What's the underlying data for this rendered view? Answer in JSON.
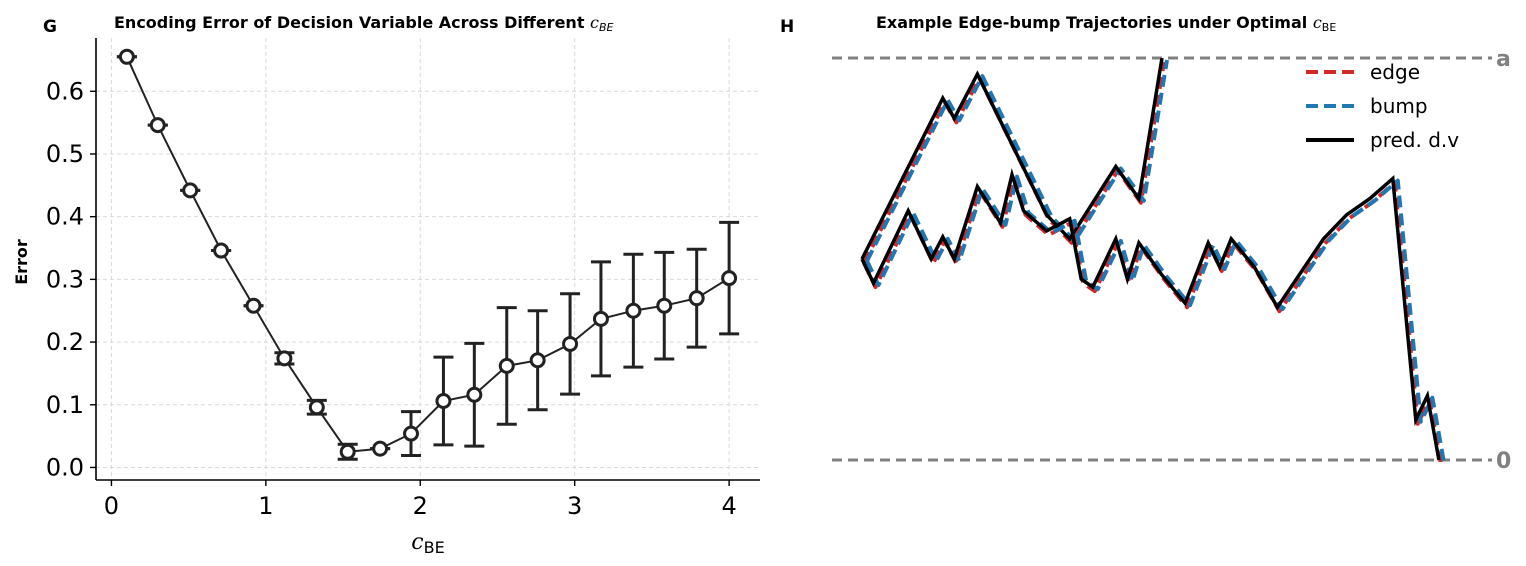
{
  "chart_data": [
    {
      "panel": "G",
      "type": "line",
      "title_prefix": "Encoding Error of Decision Variable Across Different ",
      "title_symbol": "c",
      "title_subscript": "BE",
      "xlabel_symbol": "c",
      "xlabel_subscript": "BE",
      "ylabel": "Error",
      "xlim": [
        -0.1,
        4.2
      ],
      "ylim": [
        -0.02,
        0.685
      ],
      "xticks": [
        0,
        1,
        2,
        3,
        4
      ],
      "yticks": [
        0.0,
        0.1,
        0.2,
        0.3,
        0.4,
        0.5,
        0.6
      ],
      "ytick_labels": [
        "0.0",
        "0.1",
        "0.2",
        "0.3",
        "0.4",
        "0.5",
        "0.6"
      ],
      "grid": true,
      "series": [
        {
          "x": [
            0.1,
            0.3,
            0.51,
            0.71,
            0.92,
            1.12,
            1.33,
            1.53,
            1.74,
            1.94,
            2.15,
            2.35,
            2.56,
            2.76,
            2.97,
            3.17,
            3.38,
            3.58,
            3.79,
            4.0
          ],
          "y": [
            0.655,
            0.546,
            0.442,
            0.346,
            0.258,
            0.174,
            0.096,
            0.025,
            0.03,
            0.054,
            0.106,
            0.116,
            0.162,
            0.171,
            0.197,
            0.237,
            0.25,
            0.258,
            0.27,
            0.302
          ],
          "err_low": [
            0.0,
            0.0,
            0.0,
            0.0,
            0.0,
            0.009,
            0.011,
            0.012,
            0.0,
            0.035,
            0.07,
            0.082,
            0.093,
            0.079,
            0.08,
            0.091,
            0.09,
            0.085,
            0.078,
            0.089
          ],
          "err_high": [
            0.0,
            0.0,
            0.0,
            0.0,
            0.0,
            0.009,
            0.011,
            0.012,
            0.0,
            0.035,
            0.07,
            0.082,
            0.093,
            0.079,
            0.08,
            0.091,
            0.09,
            0.085,
            0.078,
            0.089
          ],
          "color": "#222222"
        }
      ]
    },
    {
      "panel": "H",
      "type": "line",
      "title_prefix": "Example Edge-bump Trajectories under Optimal ",
      "title_symbol": "c",
      "title_subscript": "BE",
      "xlim": [
        -1.3,
        27.3
      ],
      "ylim": [
        0,
        10
      ],
      "bound_labels": {
        "upper": "a",
        "lower": "0"
      },
      "bounds": {
        "upper": 10,
        "lower": 0
      },
      "bound_color": "#808080",
      "legend": [
        {
          "label": "edge",
          "color": "#d62728",
          "style": "dashed"
        },
        {
          "label": "bump",
          "color": "#1f77b4",
          "style": "dashed"
        },
        {
          "label": "pred. d.v",
          "color": "#000000",
          "style": "solid"
        }
      ],
      "legend_position": "top-right",
      "trajectories": [
        {
          "name": "pred. d.v",
          "x": [
            0,
            3.5,
            4,
            5,
            8,
            9,
            11,
            12,
            13
          ],
          "y": [
            5,
            9,
            8.5,
            9.6,
            6.1,
            5.5,
            7.3,
            6.5,
            10
          ]
        },
        {
          "name": "pred. d.v",
          "x": [
            0,
            0.5,
            2,
            3,
            3.5,
            4,
            5,
            6,
            6.5,
            7,
            8,
            9,
            9.5,
            10,
            11,
            11.5,
            12,
            13,
            14,
            15,
            15.5,
            16,
            17,
            18,
            20,
            21,
            22,
            23,
            24,
            24.5,
            25
          ],
          "y": [
            5,
            4.4,
            6.2,
            5,
            5.55,
            5,
            6.8,
            5.9,
            7.1,
            6.2,
            5.7,
            6,
            4.5,
            4.3,
            5.5,
            4.5,
            5.4,
            4.6,
            3.9,
            5.4,
            4.8,
            5.5,
            4.8,
            3.8,
            5.5,
            6.1,
            6.5,
            7.0,
            1.0,
            1.6,
            0
          ]
        }
      ]
    }
  ]
}
